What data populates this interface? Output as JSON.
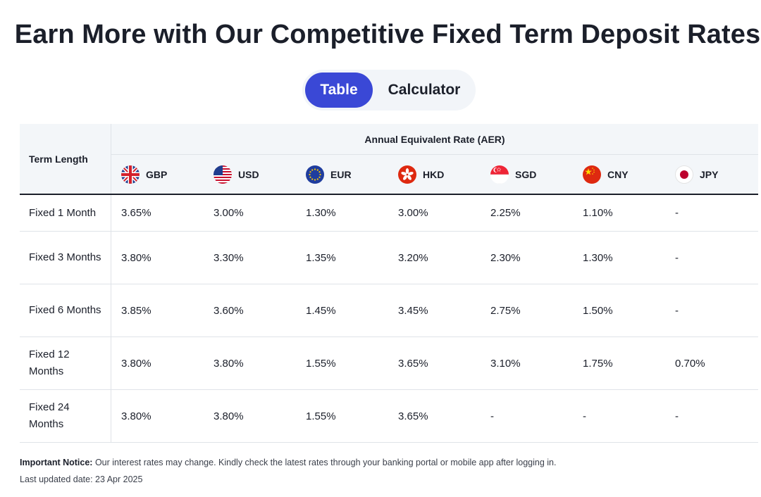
{
  "title": "Earn More with Our Competitive Fixed Term Deposit Rates",
  "toggle": {
    "table_label": "Table",
    "calculator_label": "Calculator"
  },
  "table": {
    "term_header": "Term Length",
    "aer_header": "Annual Equivalent Rate (AER)",
    "currencies": [
      {
        "code": "GBP",
        "icon": "uk-flag-icon"
      },
      {
        "code": "USD",
        "icon": "us-flag-icon"
      },
      {
        "code": "EUR",
        "icon": "eu-flag-icon"
      },
      {
        "code": "HKD",
        "icon": "hk-flag-icon"
      },
      {
        "code": "SGD",
        "icon": "sg-flag-icon"
      },
      {
        "code": "CNY",
        "icon": "cn-flag-icon"
      },
      {
        "code": "JPY",
        "icon": "jp-flag-icon"
      }
    ],
    "rows": [
      {
        "term": "Fixed 1 Month",
        "rates": [
          "3.65%",
          "3.00%",
          "1.30%",
          "3.00%",
          "2.25%",
          "1.10%",
          "-"
        ]
      },
      {
        "term": "Fixed 3 Months",
        "rates": [
          "3.80%",
          "3.30%",
          "1.35%",
          "3.20%",
          "2.30%",
          "1.30%",
          "-"
        ]
      },
      {
        "term": "Fixed 6 Months",
        "rates": [
          "3.85%",
          "3.60%",
          "1.45%",
          "3.45%",
          "2.75%",
          "1.50%",
          "-"
        ]
      },
      {
        "term": "Fixed 12 Months",
        "rates": [
          "3.80%",
          "3.80%",
          "1.55%",
          "3.65%",
          "3.10%",
          "1.75%",
          "0.70%"
        ]
      },
      {
        "term": "Fixed 24 Months",
        "rates": [
          "3.80%",
          "3.80%",
          "1.55%",
          "3.65%",
          "-",
          "-",
          "-"
        ]
      }
    ]
  },
  "notice": {
    "label": "Important Notice:",
    "text": " Our interest rates may change. Kindly check the latest rates through your banking portal or mobile app after logging in."
  },
  "last_updated": "Last updated date: 23 Apr 2025",
  "colors": {
    "accent": "#3a48d6",
    "header_bg": "#f3f6f9",
    "toggle_bg": "#f2f5f9"
  }
}
